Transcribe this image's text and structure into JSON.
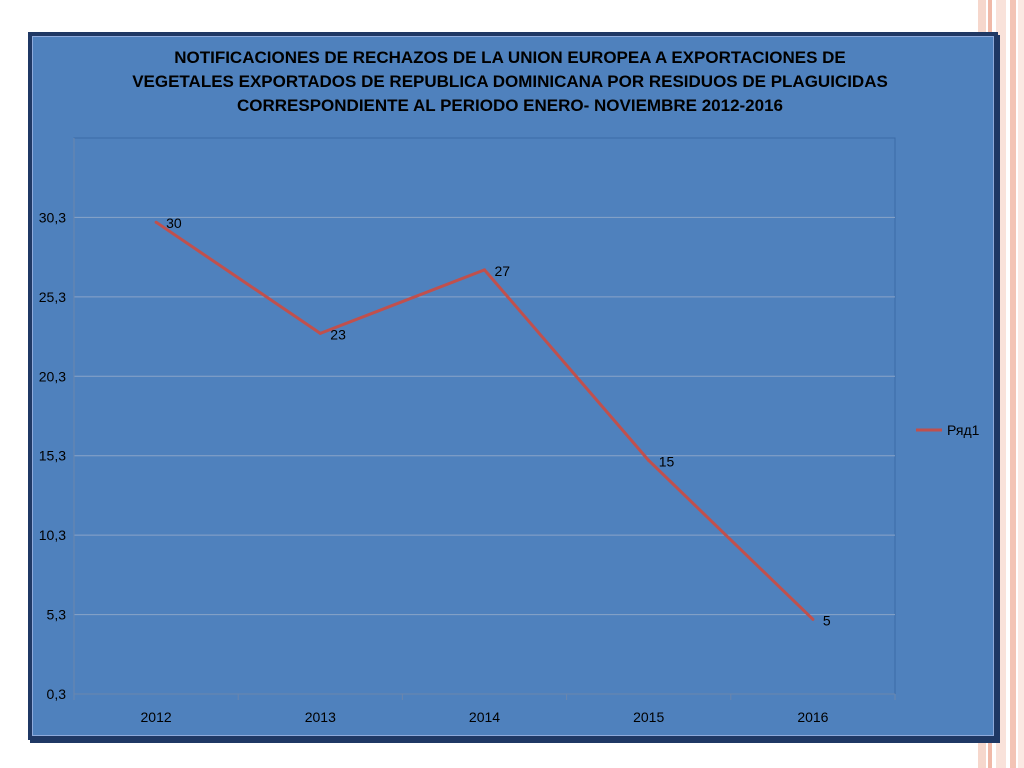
{
  "chart_data": {
    "type": "line",
    "title_lines": [
      "NOTIFICACIONES DE RECHAZOS DE LA UNION EUROPEA A EXPORTACIONES DE",
      "VEGETALES EXPORTADOS DE REPUBLICA DOMINICANA POR RESIDUOS DE PLAGUICIDAS",
      "CORRESPONDIENTE AL PERIODO ENERO- NOVIEMBRE 2012-2016"
    ],
    "categories": [
      "2012",
      "2013",
      "2014",
      "2015",
      "2016"
    ],
    "series": [
      {
        "name": "Ряд1",
        "values": [
          30,
          23,
          27,
          15,
          5
        ],
        "color": "#c0504d"
      }
    ],
    "data_labels": [
      "30",
      "23",
      "27",
      "15",
      "5"
    ],
    "y_ticks": [
      0.3,
      5.3,
      10.3,
      15.3,
      20.3,
      25.3,
      30.3
    ],
    "y_tick_labels": [
      "0,3",
      "5,3",
      "10,3",
      "15,3",
      "20,3",
      "25,3",
      "30,3"
    ],
    "ylim": [
      0.3,
      35.3
    ],
    "grid": true,
    "legend_position": "right",
    "plot_background": "#4f81bd",
    "chart_background": "#4f81bd"
  }
}
